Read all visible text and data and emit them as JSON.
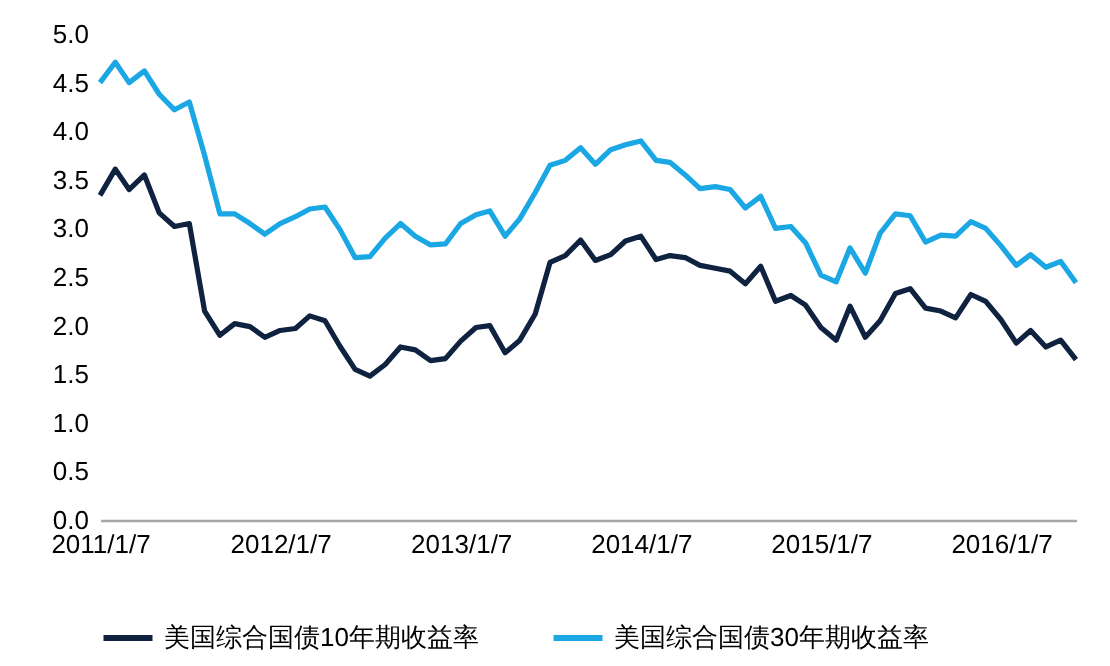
{
  "chart_data": {
    "type": "line",
    "x": [
      "2011-01-07",
      "2011-02-07",
      "2011-03-07",
      "2011-04-07",
      "2011-05-07",
      "2011-06-07",
      "2011-07-07",
      "2011-08-07",
      "2011-09-07",
      "2011-10-07",
      "2011-11-07",
      "2011-12-07",
      "2012-01-07",
      "2012-02-07",
      "2012-03-07",
      "2012-04-07",
      "2012-05-07",
      "2012-06-07",
      "2012-07-07",
      "2012-08-07",
      "2012-09-07",
      "2012-10-07",
      "2012-11-07",
      "2012-12-07",
      "2013-01-07",
      "2013-02-07",
      "2013-03-07",
      "2013-04-07",
      "2013-05-07",
      "2013-06-07",
      "2013-07-07",
      "2013-08-07",
      "2013-09-07",
      "2013-10-07",
      "2013-11-07",
      "2013-12-07",
      "2014-01-07",
      "2014-02-07",
      "2014-03-07",
      "2014-04-07",
      "2014-05-07",
      "2014-06-07",
      "2014-07-07",
      "2014-08-07",
      "2014-09-07",
      "2014-10-07",
      "2014-11-07",
      "2014-12-07",
      "2015-01-07",
      "2015-02-07",
      "2015-03-07",
      "2015-04-07",
      "2015-05-07",
      "2015-06-07",
      "2015-07-07",
      "2015-08-07",
      "2015-09-07",
      "2015-10-07",
      "2015-11-07",
      "2015-12-07",
      "2016-01-07",
      "2016-02-07",
      "2016-03-07",
      "2016-04-07",
      "2016-05-07",
      "2016-06-07"
    ],
    "series": [
      {
        "name": "美国综合国债10年期收益率",
        "color": "#0f2240",
        "values": [
          3.34,
          3.61,
          3.4,
          3.55,
          3.16,
          3.02,
          3.05,
          2.15,
          1.9,
          2.02,
          1.99,
          1.88,
          1.95,
          1.97,
          2.1,
          2.05,
          1.79,
          1.55,
          1.48,
          1.6,
          1.78,
          1.75,
          1.64,
          1.66,
          1.84,
          1.98,
          2.0,
          1.72,
          1.85,
          2.12,
          2.65,
          2.72,
          2.88,
          2.67,
          2.73,
          2.87,
          2.92,
          2.68,
          2.72,
          2.7,
          2.62,
          2.59,
          2.56,
          2.43,
          2.61,
          2.25,
          2.31,
          2.21,
          1.98,
          1.85,
          2.2,
          1.88,
          2.05,
          2.33,
          2.38,
          2.18,
          2.15,
          2.08,
          2.32,
          2.25,
          2.06,
          1.82,
          1.95,
          1.78,
          1.85,
          1.65
        ]
      },
      {
        "name": "美国综合国债30年期收益率",
        "color": "#1aa7e4",
        "values": [
          4.5,
          4.71,
          4.5,
          4.62,
          4.38,
          4.22,
          4.3,
          3.75,
          3.15,
          3.15,
          3.05,
          2.94,
          3.05,
          3.12,
          3.2,
          3.22,
          2.99,
          2.7,
          2.71,
          2.9,
          3.05,
          2.92,
          2.83,
          2.84,
          3.05,
          3.14,
          3.18,
          2.92,
          3.1,
          3.37,
          3.65,
          3.7,
          3.83,
          3.66,
          3.81,
          3.86,
          3.9,
          3.7,
          3.68,
          3.55,
          3.41,
          3.43,
          3.4,
          3.21,
          3.33,
          3.0,
          3.02,
          2.85,
          2.52,
          2.45,
          2.8,
          2.54,
          2.95,
          3.15,
          3.13,
          2.86,
          2.93,
          2.92,
          3.07,
          3.0,
          2.82,
          2.62,
          2.73,
          2.6,
          2.66,
          2.44
        ]
      }
    ],
    "xlim": [
      "2011-01-07",
      "2016-06-07"
    ],
    "xticks": [
      {
        "value": "2011-01-07",
        "label": "2011/1/7"
      },
      {
        "value": "2012-01-07",
        "label": "2012/1/7"
      },
      {
        "value": "2013-01-07",
        "label": "2013/1/7"
      },
      {
        "value": "2014-01-07",
        "label": "2014/1/7"
      },
      {
        "value": "2015-01-07",
        "label": "2015/1/7"
      },
      {
        "value": "2016-01-07",
        "label": "2016/1/7"
      }
    ],
    "ylim": [
      0,
      5
    ],
    "yticks": [
      {
        "value": 0,
        "label": "0.0"
      },
      {
        "value": 0.5,
        "label": "0.5"
      },
      {
        "value": 1,
        "label": "1.0"
      },
      {
        "value": 1.5,
        "label": "1.5"
      },
      {
        "value": 2,
        "label": "2.0"
      },
      {
        "value": 2.5,
        "label": "2.5"
      },
      {
        "value": 3,
        "label": "3.0"
      },
      {
        "value": 3.5,
        "label": "3.5"
      },
      {
        "value": 4,
        "label": "4.0"
      },
      {
        "value": 4.5,
        "label": "4.5"
      },
      {
        "value": 5,
        "label": "5.0"
      }
    ],
    "legend": "bottom",
    "line_style": "solid"
  }
}
